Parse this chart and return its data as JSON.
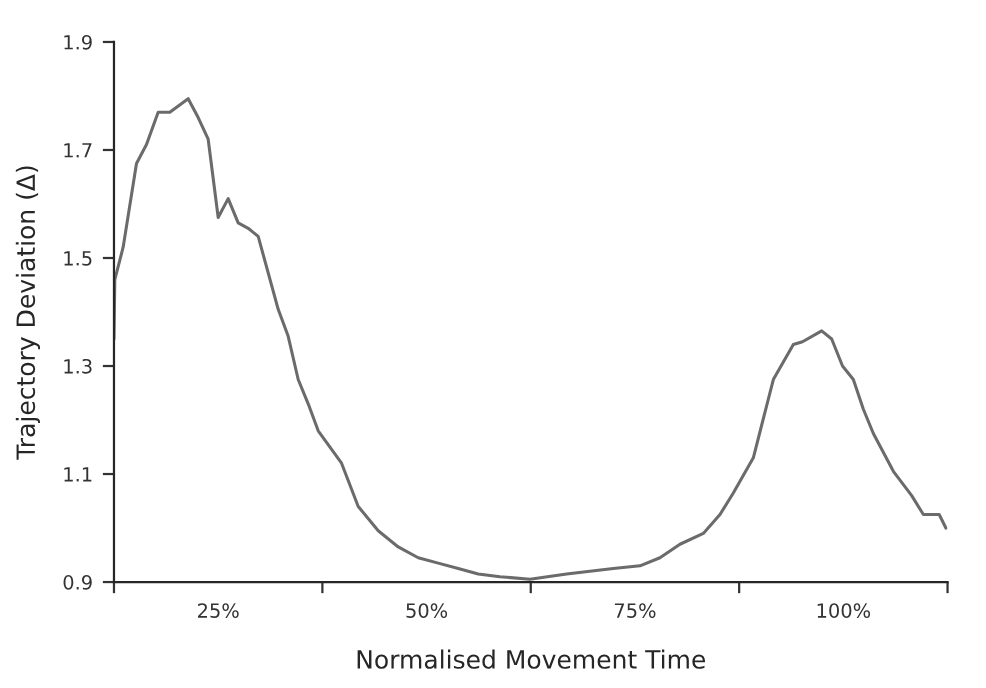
{
  "chart_data": {
    "type": "line",
    "xlabel": "Normalised Movement Time",
    "ylabel": "Trajectory Deviation (Δ)",
    "xlim": [
      12.5,
      112.5
    ],
    "ylim": [
      0.9,
      1.9
    ],
    "xticks": [
      {
        "value": 12.5,
        "label": null
      },
      {
        "value": 25,
        "label": "25%"
      },
      {
        "value": 37.5,
        "label": null
      },
      {
        "value": 50,
        "label": "50%"
      },
      {
        "value": 62.5,
        "label": null
      },
      {
        "value": 75,
        "label": "75%"
      },
      {
        "value": 87.5,
        "label": null
      },
      {
        "value": 100,
        "label": "100%"
      },
      {
        "value": 112.5,
        "label": null
      }
    ],
    "yticks": [
      0.9,
      1.1,
      1.3,
      1.5,
      1.7,
      1.9
    ],
    "grid": false,
    "marker": "none",
    "line_style": "solid",
    "series": [
      {
        "color": "#6b6b6b",
        "x": [
          12.5,
          12.6,
          13.6,
          15.2,
          16.4,
          17.8,
          19.2,
          21.4,
          22.6,
          23.8,
          25,
          26.2,
          27.4,
          28.6,
          29.8,
          32.2,
          33.4,
          34.6,
          35.8,
          37,
          39.8,
          41.8,
          44.2,
          46.6,
          49,
          51.4,
          53.8,
          56.2,
          58.8,
          62.4,
          66.8,
          72.4,
          75.6,
          78,
          80.4,
          83.2,
          85.2,
          86.8,
          89.2,
          91.6,
          94,
          95.1,
          97.4,
          98.6,
          99.9,
          101.2,
          102.4,
          103.6,
          106,
          108.2,
          109.6,
          111.5,
          112.3
        ],
        "values": [
          1.35,
          1.46,
          1.52,
          1.675,
          1.71,
          1.77,
          1.77,
          1.795,
          1.76,
          1.72,
          1.575,
          1.61,
          1.565,
          1.555,
          1.54,
          1.405,
          1.355,
          1.275,
          1.23,
          1.18,
          1.12,
          1.04,
          0.995,
          0.965,
          0.945,
          0.935,
          0.925,
          0.915,
          0.91,
          0.905,
          0.915,
          0.925,
          0.93,
          0.945,
          0.97,
          0.99,
          1.025,
          1.065,
          1.13,
          1.275,
          1.34,
          1.345,
          1.365,
          1.35,
          1.3,
          1.275,
          1.22,
          1.175,
          1.105,
          1.06,
          1.025,
          1.025,
          1.0
        ]
      }
    ]
  }
}
